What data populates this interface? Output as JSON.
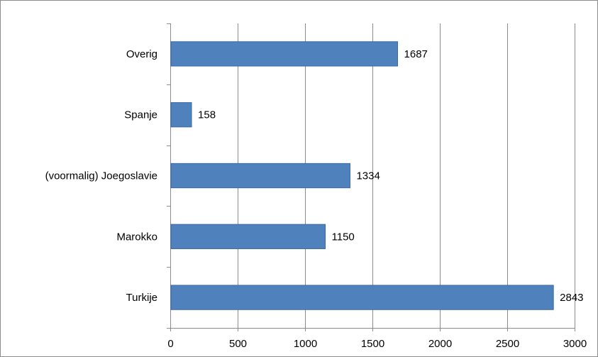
{
  "chart_data": {
    "type": "bar",
    "orientation": "horizontal",
    "categories": [
      "Overig",
      "Spanje",
      "(voormalig) Joegoslavie",
      "Marokko",
      "Turkije"
    ],
    "values": [
      1687,
      158,
      1334,
      1150,
      2843
    ],
    "title": "",
    "xlabel": "",
    "ylabel": "",
    "xlim": [
      0,
      3000
    ],
    "xticks": [
      0,
      500,
      1000,
      1500,
      2000,
      2500,
      3000
    ],
    "grid": "vertical",
    "legend": "none",
    "bar_color": "#4f81bd",
    "bar_edge_color": "#3a6aa3",
    "grid_color": "#8c8c8c"
  }
}
